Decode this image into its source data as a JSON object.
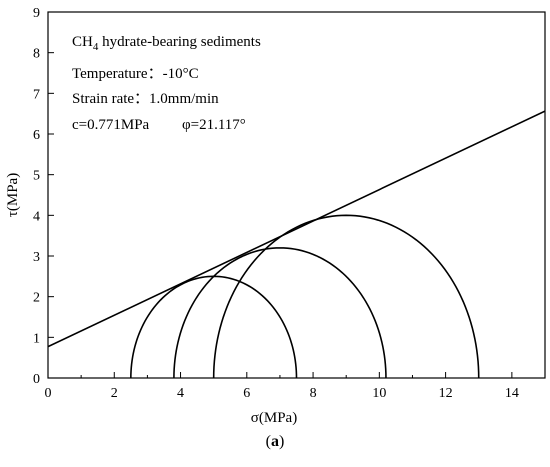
{
  "chart_data": {
    "type": "line",
    "title": "",
    "xlabel": "σ(MPa)",
    "ylabel": "τ(MPa)",
    "xlim": [
      0,
      15
    ],
    "ylim": [
      0,
      9
    ],
    "xticks": [
      0,
      2,
      4,
      6,
      8,
      10,
      12,
      14
    ],
    "yticks": [
      0,
      1,
      2,
      3,
      4,
      5,
      6,
      7,
      8,
      9
    ],
    "grid": false,
    "annotations": {
      "material_prefix": "CH",
      "material_subscript": "4",
      "material_suffix": " hydrate-bearing sediments",
      "temperature": "Temperature：-10°C",
      "strain_rate": "Strain rate：1.0mm/min",
      "cohesion": "c=0.771MPa",
      "friction_angle": "φ=21.117°"
    },
    "failure_envelope": {
      "cohesion_mpa": 0.771,
      "friction_angle_deg": 21.117
    },
    "mohr_circles": [
      {
        "sigma3": 2.5,
        "sigma1": 7.5
      },
      {
        "sigma3": 3.8,
        "sigma1": 10.2
      },
      {
        "sigma3": 5.0,
        "sigma1": 13.0
      }
    ]
  },
  "caption": {
    "open": "(",
    "letter": "a",
    "close": ")"
  },
  "colors": {
    "line": "#000000",
    "background": "#ffffff"
  }
}
